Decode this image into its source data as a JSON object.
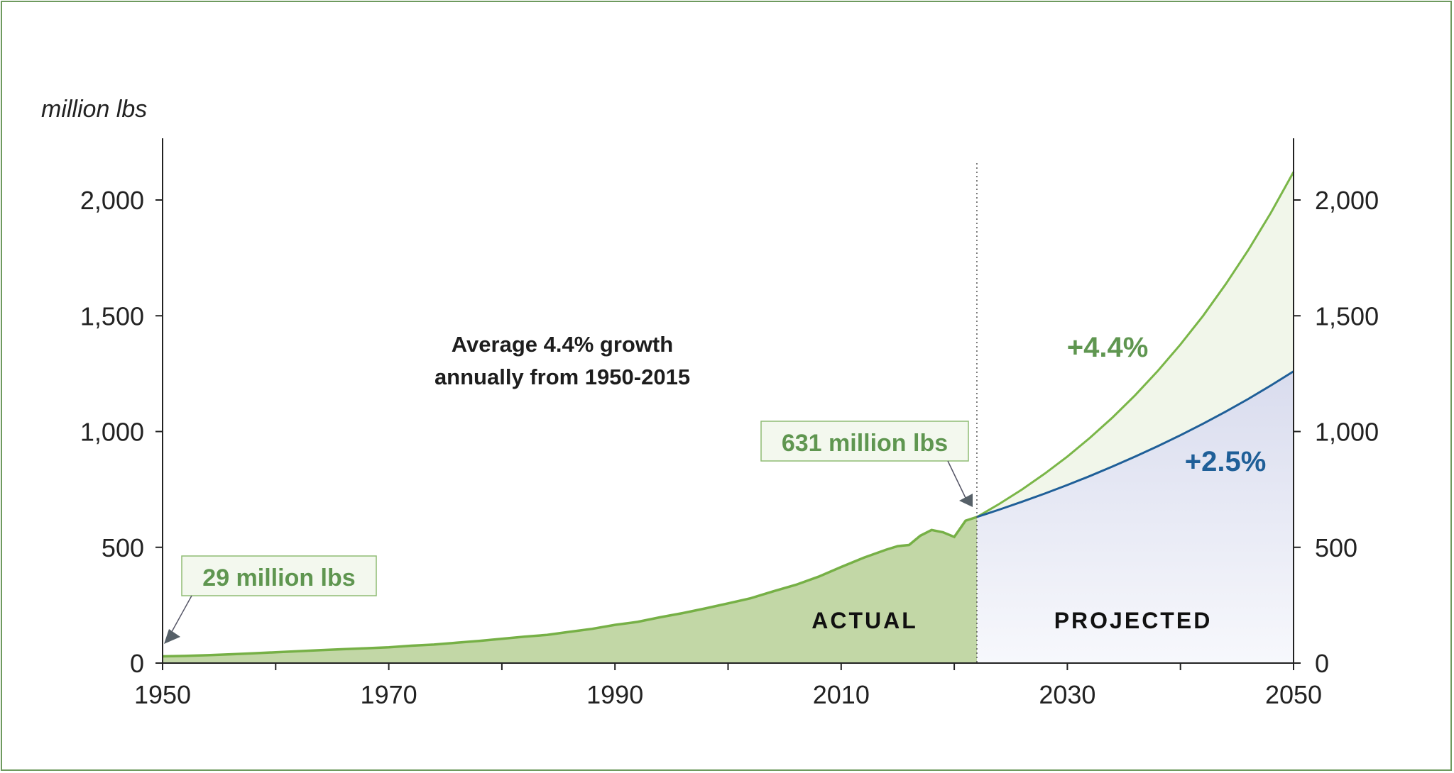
{
  "chart_data": {
    "type": "area",
    "ylabel": "million lbs",
    "xlim": [
      1950,
      2050
    ],
    "ylim": [
      0,
      2200
    ],
    "x_ticks": [
      "1950",
      "1970",
      "1990",
      "2010",
      "2030",
      "2050"
    ],
    "y_ticks": [
      "0",
      "500",
      "1,000",
      "1,500",
      "2,000"
    ],
    "annotation": {
      "line1": "Average 4.4% growth",
      "line2": "annually from 1950-2015"
    },
    "callouts": [
      {
        "label": "29 million lbs",
        "year": 1950,
        "value": 29
      },
      {
        "label": "631 million lbs",
        "year": 2022,
        "value": 631
      }
    ],
    "regions": {
      "actual": "ACTUAL",
      "projected": "PROJECTED"
    },
    "split_year": 2022,
    "colors": {
      "actual_fill": "#c2d7a6",
      "actual_line": "#76b046",
      "proj_green_line": "#7ab648",
      "proj_green_fill": "#f1f6ea",
      "proj_blue_line": "#1f5f98",
      "proj_blue_fill": "#e4e7f4",
      "green_text": "#5f9650",
      "blue_text": "#1f5f98"
    },
    "series": [
      {
        "name": "Actual",
        "x": [
          1950,
          1952,
          1954,
          1956,
          1958,
          1960,
          1962,
          1964,
          1966,
          1968,
          1970,
          1972,
          1974,
          1976,
          1978,
          1980,
          1982,
          1984,
          1986,
          1988,
          1990,
          1992,
          1994,
          1996,
          1998,
          2000,
          2002,
          2004,
          2006,
          2008,
          2010,
          2012,
          2014,
          2015,
          2016,
          2017,
          2018,
          2019,
          2020,
          2021,
          2022
        ],
        "values": [
          29,
          31,
          34,
          38,
          42,
          47,
          51,
          56,
          60,
          64,
          68,
          75,
          80,
          88,
          96,
          105,
          114,
          122,
          135,
          148,
          165,
          178,
          198,
          216,
          236,
          258,
          280,
          310,
          338,
          373,
          415,
          455,
          490,
          505,
          510,
          550,
          575,
          565,
          545,
          615,
          631
        ]
      },
      {
        "name": "+4.4%",
        "label": "+4.4%",
        "x": [
          2022,
          2024,
          2026,
          2028,
          2030,
          2032,
          2034,
          2036,
          2038,
          2040,
          2042,
          2044,
          2046,
          2048,
          2050
        ],
        "values": [
          631,
          688,
          750,
          818,
          892,
          973,
          1061,
          1157,
          1262,
          1376,
          1500,
          1636,
          1784,
          1945,
          2121
        ]
      },
      {
        "name": "+2.5%",
        "label": "+2.5%",
        "x": [
          2022,
          2024,
          2026,
          2028,
          2030,
          2032,
          2034,
          2036,
          2038,
          2040,
          2042,
          2044,
          2046,
          2048,
          2050
        ],
        "values": [
          631,
          663,
          697,
          732,
          769,
          808,
          849,
          892,
          937,
          984,
          1034,
          1086,
          1141,
          1199,
          1260
        ]
      }
    ]
  }
}
